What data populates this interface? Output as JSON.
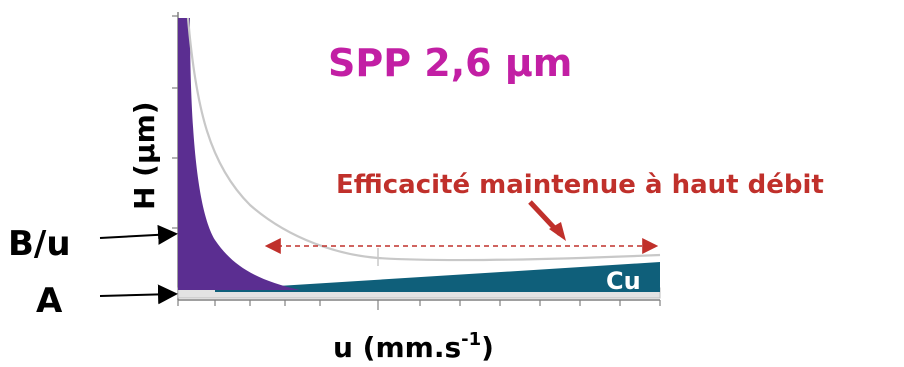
{
  "diagram": {
    "title": "SPP 2,6 µm",
    "annotation": "Efficacité maintenue à haut débit",
    "yaxis_label": "H (µm)",
    "xaxis_label_main": "u (mm.s",
    "xaxis_label_sup": "-1",
    "xaxis_label_close": ")",
    "term_b_label": "B/u",
    "term_a_label": "A",
    "term_c_label": "Cu",
    "colors": {
      "title": "#c21fa4",
      "annotation": "#c0302b",
      "purple_term": "#5b2e91",
      "teal_term": "#0f5f7a",
      "a_band": "#e3e3e3",
      "total_curve": "#c8c8c8",
      "axes": "#808080"
    }
  }
}
